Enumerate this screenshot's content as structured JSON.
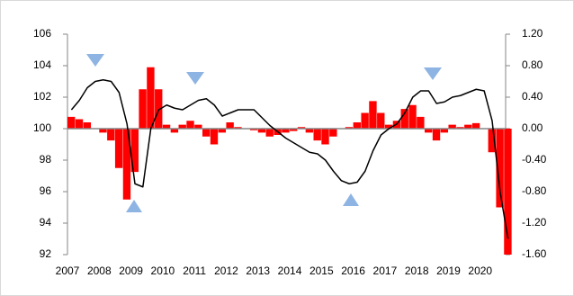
{
  "chart_data": {
    "type": "bar",
    "x": [
      2007.0,
      2007.25,
      2007.5,
      2007.75,
      2008.0,
      2008.25,
      2008.5,
      2008.75,
      2009.0,
      2009.25,
      2009.5,
      2009.75,
      2010.0,
      2010.25,
      2010.5,
      2010.75,
      2011.0,
      2011.25,
      2011.5,
      2011.75,
      2012.0,
      2012.25,
      2012.5,
      2012.75,
      2013.0,
      2013.25,
      2013.5,
      2013.75,
      2014.0,
      2014.25,
      2014.5,
      2014.75,
      2015.0,
      2015.25,
      2015.5,
      2015.75,
      2016.0,
      2016.25,
      2016.5,
      2016.75,
      2017.0,
      2017.25,
      2017.5,
      2017.75,
      2018.0,
      2018.25,
      2018.5,
      2018.75,
      2019.0,
      2019.25,
      2019.5,
      2019.75,
      2020.0,
      2020.25,
      2020.5,
      2020.75
    ],
    "series": [
      {
        "type": "bar",
        "axis": "y2",
        "color": "#ff0000",
        "values": [
          0.15,
          0.12,
          0.08,
          0.0,
          -0.05,
          -0.15,
          -0.5,
          -0.9,
          -0.55,
          0.5,
          0.78,
          0.5,
          0.05,
          -0.05,
          0.05,
          0.1,
          0.05,
          -0.1,
          -0.2,
          -0.05,
          0.08,
          0.02,
          0.0,
          -0.02,
          -0.05,
          -0.1,
          -0.08,
          -0.05,
          -0.03,
          0.02,
          -0.05,
          -0.15,
          -0.2,
          -0.1,
          0.0,
          0.02,
          0.08,
          0.2,
          0.35,
          0.2,
          0.05,
          0.1,
          0.25,
          0.3,
          0.15,
          -0.05,
          -0.15,
          -0.05,
          0.05,
          0.02,
          0.05,
          0.07,
          0.0,
          -0.3,
          -1.0,
          -1.6
        ]
      },
      {
        "type": "line",
        "color": "#000000",
        "values": [
          101.2,
          101.8,
          102.6,
          103.0,
          103.1,
          103.0,
          102.3,
          100.3,
          96.5,
          96.3,
          100.0,
          101.2,
          101.5,
          101.3,
          101.2,
          101.5,
          101.8,
          101.9,
          101.5,
          100.8,
          101.0,
          101.2,
          101.2,
          101.2,
          100.7,
          100.2,
          99.8,
          99.4,
          99.1,
          98.8,
          98.5,
          98.4,
          98.0,
          97.3,
          96.7,
          96.5,
          96.6,
          97.3,
          98.6,
          99.6,
          100.0,
          100.3,
          101.0,
          102.0,
          102.4,
          102.4,
          101.6,
          101.7,
          102.0,
          102.1,
          102.3,
          102.5,
          102.4,
          100.5,
          96.0,
          93.0
        ]
      }
    ],
    "xlim": [
      2007,
      2020.8
    ],
    "xticks": [
      2007,
      2008,
      2009,
      2010,
      2011,
      2012,
      2013,
      2014,
      2015,
      2016,
      2017,
      2018,
      2019,
      2020
    ],
    "ylim": [
      92,
      106
    ],
    "yticks": [
      92,
      94,
      96,
      98,
      100,
      102,
      104,
      106
    ],
    "y2lim": [
      -1.6,
      1.2
    ],
    "y2ticks": [
      {
        "value": -1.6,
        "label": "-1.60"
      },
      {
        "value": -1.2,
        "label": "-1.20"
      },
      {
        "value": -0.8,
        "label": "-0.80"
      },
      {
        "value": -0.4,
        "label": "-0.40"
      },
      {
        "value": 0,
        "label": "0.00"
      },
      {
        "value": 0.4,
        "label": "0.40"
      },
      {
        "value": 0.8,
        "label": "0.80"
      },
      {
        "value": 1.2,
        "label": "1.20"
      }
    ]
  }
}
